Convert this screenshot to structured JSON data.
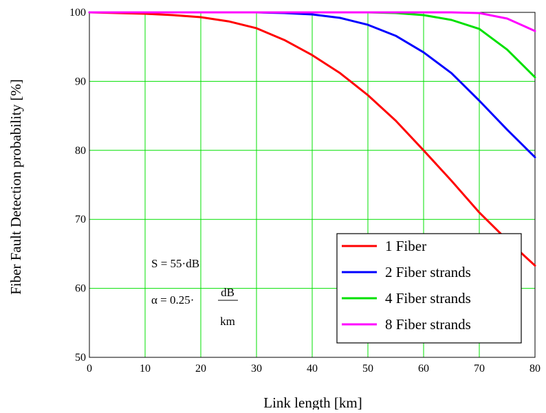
{
  "chart_data": {
    "type": "line",
    "title": "",
    "xlabel": "Link length [km]",
    "ylabel": "Fiber Fault Detection probability [%]",
    "xlim": [
      0,
      80
    ],
    "ylim": [
      50,
      100
    ],
    "x_ticks": [
      0,
      10,
      20,
      30,
      40,
      50,
      60,
      70,
      80
    ],
    "y_ticks": [
      50,
      60,
      70,
      80,
      90,
      100
    ],
    "grid": true,
    "grid_color": "#00e000",
    "legend_position": "bottom-right",
    "x": [
      0,
      5,
      10,
      15,
      20,
      25,
      30,
      35,
      40,
      45,
      50,
      55,
      60,
      65,
      70,
      75,
      80
    ],
    "series": [
      {
        "name": "1 Fiber",
        "color": "#ff0000",
        "values": [
          100,
          99.9,
          99.8,
          99.6,
          99.3,
          98.7,
          97.7,
          96.0,
          93.8,
          91.2,
          88.0,
          84.3,
          80.0,
          75.6,
          71.0,
          67.0,
          63.3
        ]
      },
      {
        "name": "2 Fiber strands",
        "color": "#0000ff",
        "values": [
          100,
          100,
          100,
          100,
          100,
          100,
          100,
          99.9,
          99.7,
          99.2,
          98.2,
          96.6,
          94.2,
          91.2,
          87.2,
          83.0,
          79.0
        ]
      },
      {
        "name": "4 Fiber strands",
        "color": "#00e000",
        "values": [
          100,
          100,
          100,
          100,
          100,
          100,
          100,
          100,
          100,
          100,
          100,
          99.9,
          99.6,
          98.9,
          97.6,
          94.6,
          90.6
        ]
      },
      {
        "name": "8 Fiber strands",
        "color": "#ff00ff",
        "values": [
          100,
          100,
          100,
          100,
          100,
          100,
          100,
          100,
          100,
          100,
          100,
          100,
          100,
          100,
          99.9,
          99.1,
          97.3
        ]
      }
    ],
    "annotations": {
      "s_eq": "S = 55·dB",
      "alpha_lhs": "α = 0.25·",
      "alpha_num": "dB",
      "alpha_den": "km"
    }
  }
}
